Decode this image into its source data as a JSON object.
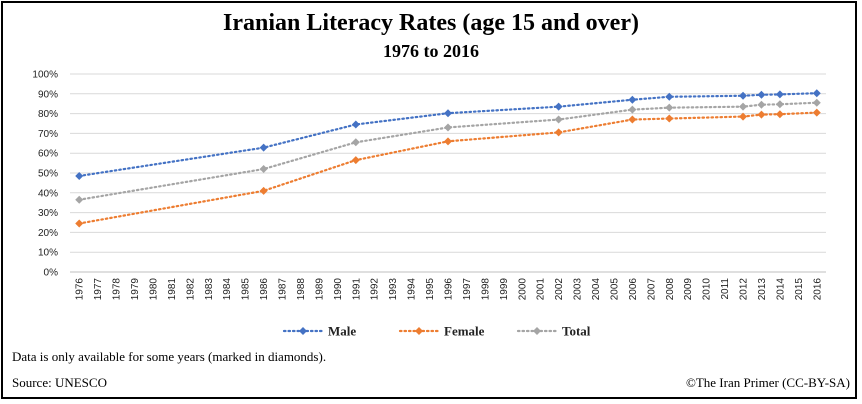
{
  "chart_data": {
    "type": "line",
    "title": "Iranian Literacy Rates (age 15 and over)",
    "subtitle": "1976 to 2016",
    "x_categories": [
      "1976",
      "1977",
      "1978",
      "1979",
      "1980",
      "1981",
      "1982",
      "1983",
      "1984",
      "1985",
      "1986",
      "1987",
      "1988",
      "1989",
      "1990",
      "1991",
      "1992",
      "1993",
      "1994",
      "1995",
      "1996",
      "1997",
      "1998",
      "1999",
      "2000",
      "2001",
      "2002",
      "2003",
      "2004",
      "2005",
      "2006",
      "2007",
      "2008",
      "2009",
      "2010",
      "2011",
      "2012",
      "2013",
      "2014",
      "2015",
      "2016"
    ],
    "y_ticks": [
      "0%",
      "10%",
      "20%",
      "30%",
      "40%",
      "50%",
      "60%",
      "70%",
      "80%",
      "90%",
      "100%"
    ],
    "ylim": [
      0,
      100
    ],
    "grid": true,
    "legend_position": "bottom",
    "series": [
      {
        "name": "Male",
        "color": "#4472C4",
        "points": [
          [
            1976,
            48.5
          ],
          [
            1986,
            62.8
          ],
          [
            1991,
            74.5
          ],
          [
            1996,
            80.2
          ],
          [
            2002,
            83.5
          ],
          [
            2006,
            87.0
          ],
          [
            2008,
            88.5
          ],
          [
            2012,
            89.0
          ],
          [
            2013,
            89.5
          ],
          [
            2014,
            89.7
          ],
          [
            2016,
            90.3
          ]
        ]
      },
      {
        "name": "Female",
        "color": "#ED7D31",
        "points": [
          [
            1976,
            24.5
          ],
          [
            1986,
            41.0
          ],
          [
            1991,
            56.5
          ],
          [
            1996,
            66.0
          ],
          [
            2002,
            70.5
          ],
          [
            2006,
            77.0
          ],
          [
            2008,
            77.5
          ],
          [
            2012,
            78.5
          ],
          [
            2013,
            79.5
          ],
          [
            2014,
            79.7
          ],
          [
            2016,
            80.5
          ]
        ]
      },
      {
        "name": "Total",
        "color": "#A5A5A5",
        "points": [
          [
            1976,
            36.5
          ],
          [
            1986,
            52.0
          ],
          [
            1991,
            65.5
          ],
          [
            1996,
            73.0
          ],
          [
            2002,
            77.0
          ],
          [
            2006,
            82.0
          ],
          [
            2008,
            83.0
          ],
          [
            2012,
            83.5
          ],
          [
            2013,
            84.5
          ],
          [
            2014,
            84.7
          ],
          [
            2016,
            85.5
          ]
        ]
      }
    ]
  },
  "notes": {
    "availability": "Data is only available for some years (marked in diamonds).",
    "source": "Source:  UNESCO",
    "credit": "©The Iran Primer  (CC-BY-SA)"
  }
}
